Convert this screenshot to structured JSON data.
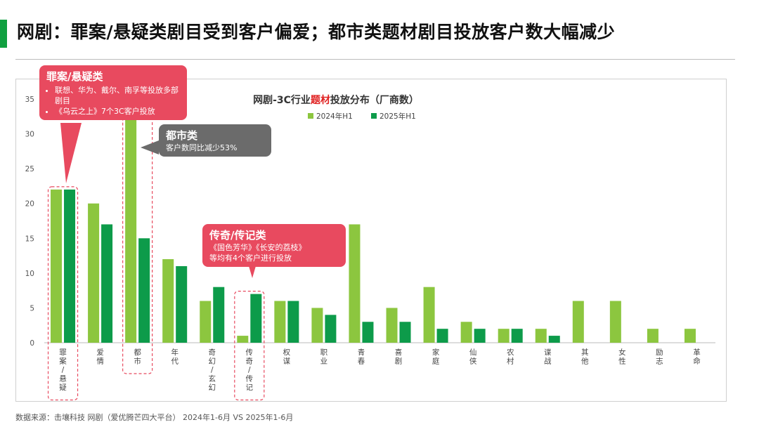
{
  "header": {
    "title": "网剧：罪案/悬疑类剧目受到客户偏爱；都市类题材剧目投放客户数大幅减少",
    "accent_color": "#10a040"
  },
  "source": "数据来源：击壤科技 网剧（爱优腾芒四大平台） 2024年1-6月 VS 2025年1-6月",
  "watermark_text": "击壤科技",
  "callouts": {
    "crime": {
      "title": "罪案/悬疑类",
      "lines": [
        "联想、华为、戴尔、南孚等投放多部剧目",
        "《乌云之上》7个3C客户投放"
      ]
    },
    "urban": {
      "title": "都市类",
      "lines": [
        "客户数同比减少53%"
      ]
    },
    "legend_cat": {
      "title": "传奇/传记类",
      "lines": [
        "《国色芳华》《长安的荔枝》",
        "等均有4个客户进行投放"
      ]
    }
  },
  "chart_data": {
    "type": "bar",
    "title_parts": [
      "网剧-3C行业",
      "题材",
      "投放分布（厂商数）"
    ],
    "title_colors": [
      "#333333",
      "#e02020",
      "#333333"
    ],
    "categories": [
      "罪案/悬疑",
      "爱情",
      "都市",
      "年代",
      "奇幻/玄幻",
      "传奇/传记",
      "权谋",
      "职业",
      "青春",
      "喜剧",
      "家庭",
      "仙侠",
      "农村",
      "谍战",
      "其他",
      "女性",
      "励志",
      "革命"
    ],
    "category_labels": [
      [
        "罪",
        "案",
        "/",
        "悬",
        "疑"
      ],
      [
        "爱",
        "情"
      ],
      [
        "都",
        "市"
      ],
      [
        "年",
        "代"
      ],
      [
        "奇",
        "幻",
        "/",
        "玄",
        "幻"
      ],
      [
        "传",
        "奇",
        "/",
        "传",
        "记"
      ],
      [
        "权",
        "谋"
      ],
      [
        "职",
        "业"
      ],
      [
        "青",
        "春"
      ],
      [
        "喜",
        "剧"
      ],
      [
        "家",
        "庭"
      ],
      [
        "仙",
        "侠"
      ],
      [
        "农",
        "村"
      ],
      [
        "谍",
        "战"
      ],
      [
        "其",
        "他"
      ],
      [
        "女",
        "性"
      ],
      [
        "励",
        "志"
      ],
      [
        "革",
        "命"
      ]
    ],
    "series": [
      {
        "name": "2024年H1",
        "color": "#8cc63f",
        "values": [
          22,
          20,
          32,
          12,
          6,
          1,
          6,
          5,
          17,
          5,
          8,
          3,
          2,
          2,
          6,
          6,
          2,
          2
        ]
      },
      {
        "name": "2025年H1",
        "color": "#0d9b4a",
        "values": [
          22,
          17,
          15,
          11,
          8,
          7,
          6,
          4,
          3,
          3,
          2,
          2,
          2,
          1,
          0,
          0,
          0,
          0
        ]
      }
    ],
    "ylim": [
      0,
      35
    ],
    "yticks": [
      0,
      5,
      10,
      15,
      20,
      25,
      30,
      35
    ],
    "highlight_categories": [
      "罪案/悬疑",
      "都市",
      "传奇/传记"
    ],
    "highlight_color": "#e84a5f",
    "grid": false,
    "legend_position": "top-center"
  }
}
